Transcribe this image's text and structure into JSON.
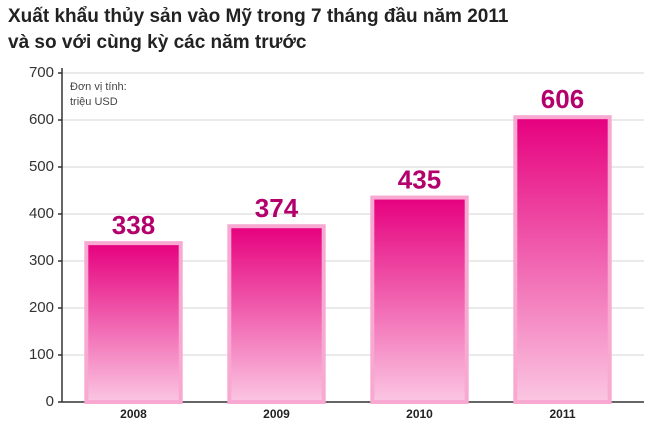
{
  "chart_data": {
    "type": "bar",
    "title": [
      "Xuất khẩu thủy sản vào Mỹ trong 7 tháng đầu năm 2011",
      "và so với cùng kỳ các năm trước"
    ],
    "note": [
      "Đơn vị tính:",
      "triệu USD"
    ],
    "categories": [
      "2008",
      "2009",
      "2010",
      "2011"
    ],
    "values": [
      338,
      374,
      435,
      606
    ],
    "color": "#e6007e",
    "label_color": "#b3006c",
    "ylim": [
      0,
      700
    ],
    "yticks": [
      0,
      100,
      200,
      300,
      400,
      500,
      600,
      700
    ],
    "grid": true
  }
}
